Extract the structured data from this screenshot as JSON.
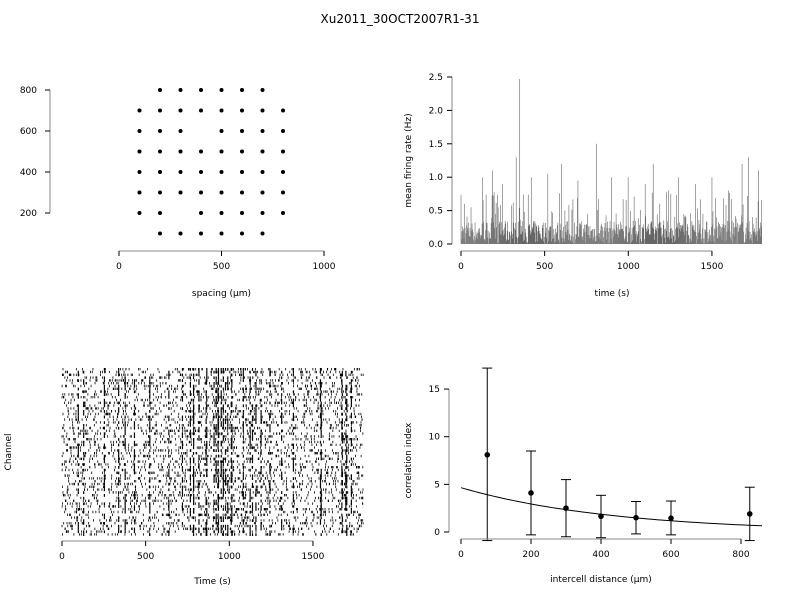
{
  "title": "Xu2011_30OCT2007R1-31",
  "chart_data": [
    {
      "type": "scatter",
      "xlabel": "spacing (µm)",
      "ylabel": "",
      "xlim": [
        0,
        1000
      ],
      "ylim": [
        100,
        800
      ],
      "xticks": [
        0,
        500,
        1000
      ],
      "yticks": [
        200,
        400,
        600,
        800
      ],
      "rows": [
        {
          "y": 800,
          "x": [
            200,
            300,
            400,
            500,
            600,
            700
          ]
        },
        {
          "y": 700,
          "x": [
            100,
            200,
            300,
            400,
            500,
            600,
            700,
            800
          ]
        },
        {
          "y": 600,
          "x": [
            100,
            200,
            300,
            500,
            600,
            700,
            800
          ]
        },
        {
          "y": 500,
          "x": [
            100,
            200,
            300,
            400,
            500,
            600,
            700,
            800
          ]
        },
        {
          "y": 400,
          "x": [
            100,
            200,
            300,
            400,
            500,
            600,
            700,
            800
          ]
        },
        {
          "y": 300,
          "x": [
            100,
            200,
            300,
            400,
            500,
            600,
            700,
            800
          ]
        },
        {
          "y": 200,
          "x": [
            100,
            200,
            400,
            500,
            600,
            700,
            800
          ]
        },
        {
          "y": 100,
          "x": [
            200,
            300,
            400,
            500,
            600,
            700
          ]
        }
      ]
    },
    {
      "type": "bar",
      "xlabel": "time (s)",
      "ylabel": "mean firing rate (Hz)",
      "xlim": [
        0,
        1800
      ],
      "ylim": [
        0,
        2.5
      ],
      "xticks": [
        0,
        500,
        1000,
        1500
      ],
      "yticks": [
        "0.0",
        "0.5",
        "1.0",
        "1.5",
        "2.0",
        "2.5"
      ],
      "peaks": [
        [
          20,
          0.6
        ],
        [
          60,
          0.55
        ],
        [
          130,
          1.0
        ],
        [
          190,
          1.1
        ],
        [
          250,
          0.9
        ],
        [
          330,
          1.3
        ],
        [
          350,
          2.47
        ],
        [
          420,
          1.0
        ],
        [
          520,
          1.05
        ],
        [
          600,
          1.2
        ],
        [
          700,
          0.95
        ],
        [
          810,
          1.5
        ],
        [
          900,
          1.0
        ],
        [
          1000,
          1.0
        ],
        [
          1100,
          0.9
        ],
        [
          1150,
          1.2
        ],
        [
          1240,
          0.8
        ],
        [
          1300,
          1.0
        ],
        [
          1400,
          0.9
        ],
        [
          1500,
          1.0
        ],
        [
          1600,
          0.8
        ],
        [
          1680,
          1.2
        ],
        [
          1720,
          1.3
        ],
        [
          1780,
          1.1
        ]
      ]
    },
    {
      "type": "raster",
      "xlabel": "Time (s)",
      "ylabel": "Channel",
      "xlim": [
        0,
        1800
      ],
      "xticks": [
        0,
        500,
        1000,
        1500
      ],
      "channels": 60
    },
    {
      "type": "scatter",
      "xlabel": "intercell distance (µm)",
      "ylabel": "correlation index",
      "xlim": [
        0,
        860
      ],
      "ylim": [
        0,
        17
      ],
      "xticks": [
        0,
        200,
        400,
        600,
        800
      ],
      "yticks": [
        0,
        5,
        10,
        15
      ],
      "points": [
        {
          "x": 75,
          "y": 8.1,
          "lo": -0.9,
          "hi": 17.2
        },
        {
          "x": 200,
          "y": 4.1,
          "lo": -0.3,
          "hi": 8.5
        },
        {
          "x": 300,
          "y": 2.5,
          "lo": -0.5,
          "hi": 5.5
        },
        {
          "x": 400,
          "y": 1.65,
          "lo": -0.6,
          "hi": 3.85
        },
        {
          "x": 500,
          "y": 1.5,
          "lo": -0.2,
          "hi": 3.2
        },
        {
          "x": 600,
          "y": 1.45,
          "lo": -0.3,
          "hi": 3.25
        },
        {
          "x": 825,
          "y": 1.9,
          "lo": -0.9,
          "hi": 4.7
        }
      ],
      "fit": {
        "a": 4.65,
        "b": 437
      }
    }
  ]
}
